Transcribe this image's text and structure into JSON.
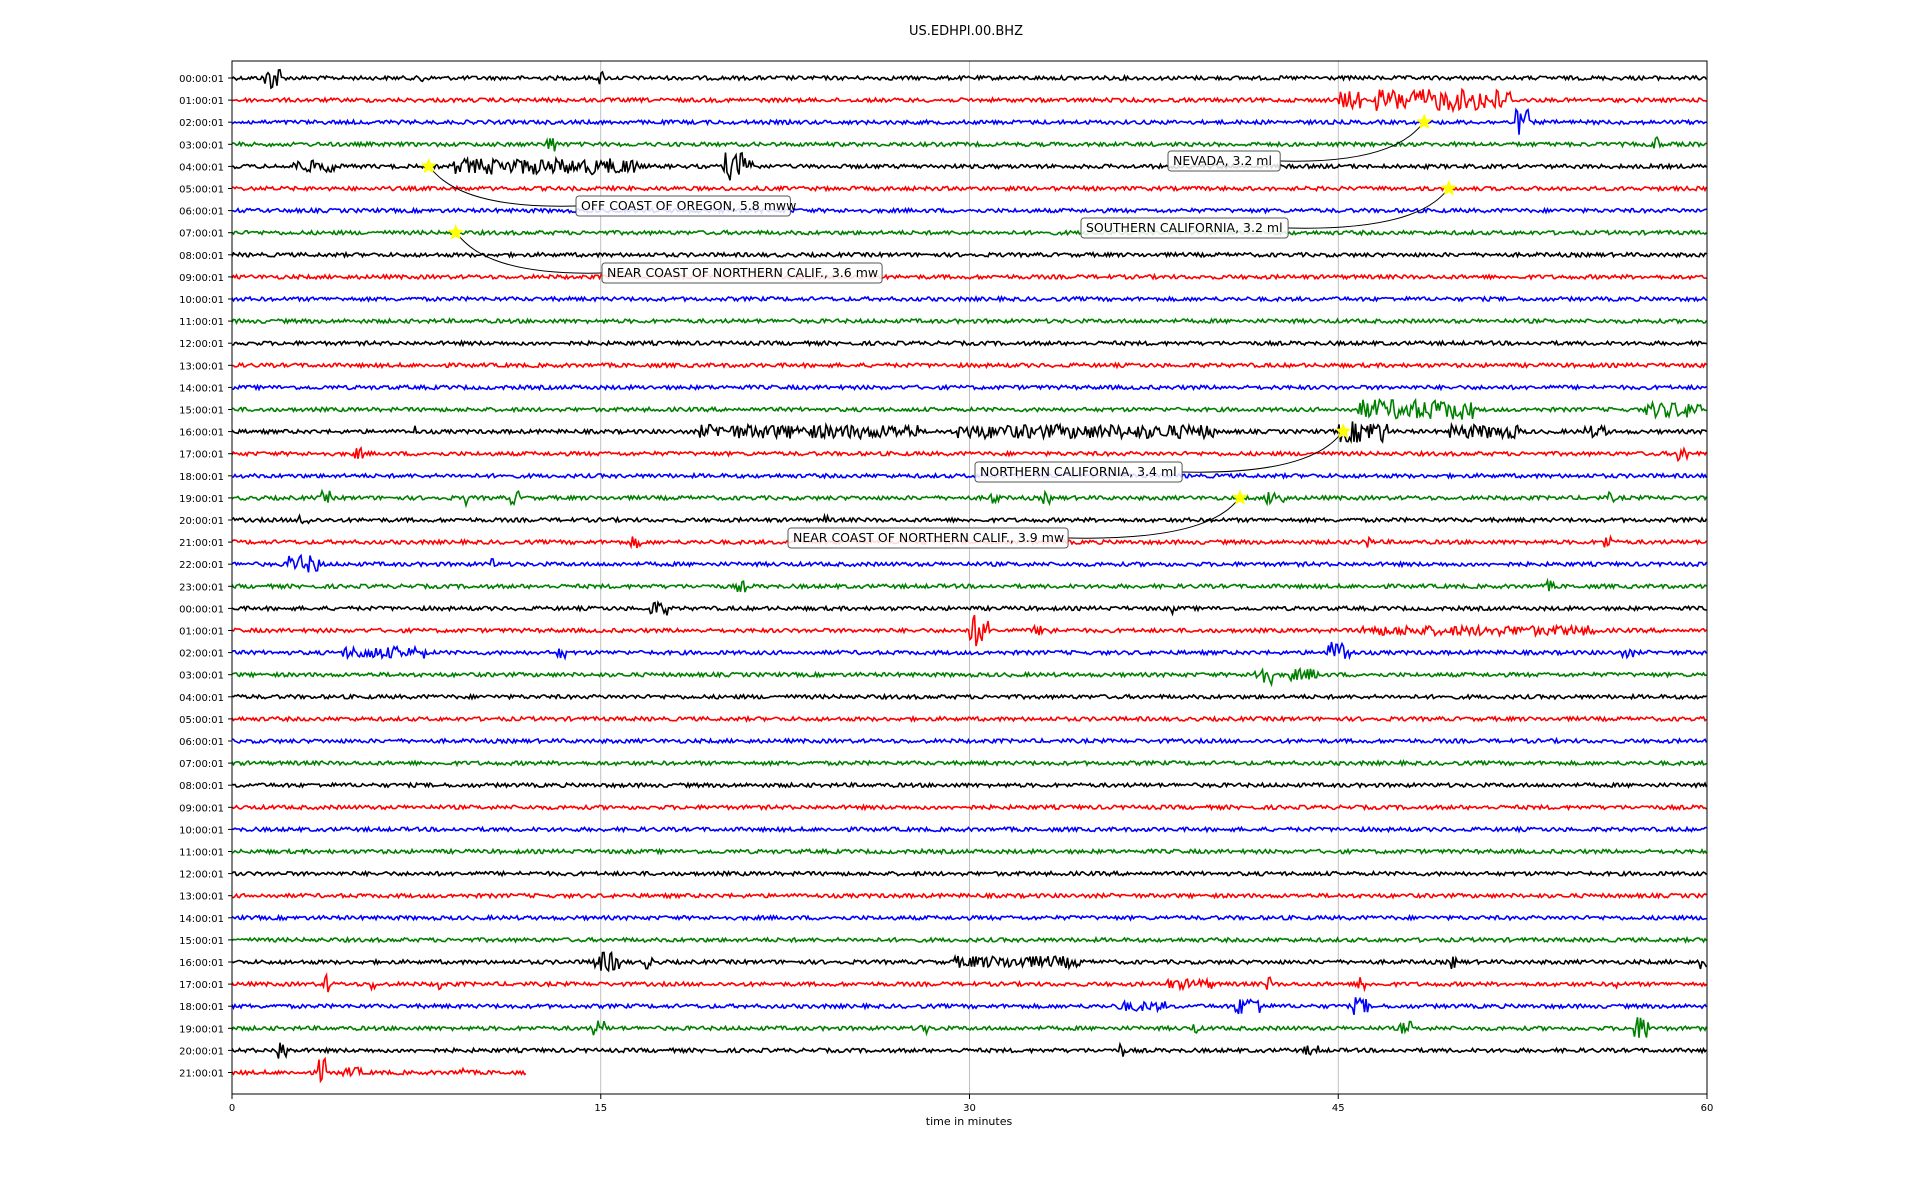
{
  "chart_data": {
    "type": "line",
    "title": "US.EDHPI.00.BHZ",
    "xlabel": "time in minutes",
    "ylabel": "",
    "xlim": [
      0,
      60
    ],
    "xticks": [
      0,
      15,
      30,
      45,
      60
    ],
    "grid_x": true,
    "line_colors": [
      "#000000",
      "#ff0000",
      "#0000ff",
      "#008000"
    ],
    "marker_color": "#ffff00",
    "row_labels": [
      "00:00:01",
      "01:00:01",
      "02:00:01",
      "03:00:01",
      "04:00:01",
      "05:00:01",
      "06:00:01",
      "07:00:01",
      "08:00:01",
      "09:00:01",
      "10:00:01",
      "11:00:01",
      "12:00:01",
      "13:00:01",
      "14:00:01",
      "15:00:01",
      "16:00:01",
      "17:00:01",
      "18:00:01",
      "19:00:01",
      "20:00:01",
      "21:00:01",
      "22:00:01",
      "23:00:01",
      "00:00:01",
      "01:00:01",
      "02:00:01",
      "03:00:01",
      "04:00:01",
      "05:00:01",
      "06:00:01",
      "07:00:01",
      "08:00:01",
      "09:00:01",
      "10:00:01",
      "11:00:01",
      "12:00:01",
      "13:00:01",
      "14:00:01",
      "15:00:01",
      "16:00:01",
      "17:00:01",
      "18:00:01",
      "19:00:01",
      "20:00:01",
      "21:00:01"
    ],
    "last_row_end_minutes": 12,
    "events": [
      {
        "label": "NEVADA, 3.2 ml",
        "row": 2,
        "minute": 48.5
      },
      {
        "label": "OFF COAST OF OREGON, 5.8 mww",
        "row": 4,
        "minute": 8.0
      },
      {
        "label": "SOUTHERN CALIFORNIA, 3.2 ml",
        "row": 5,
        "minute": 49.5
      },
      {
        "label": "NEAR COAST OF NORTHERN CALIF., 3.6 mw",
        "row": 7,
        "minute": 9.1
      },
      {
        "label": "NORTHERN CALIFORNIA, 3.4 ml",
        "row": 16,
        "minute": 45.2
      },
      {
        "label": "NEAR COAST OF NORTHERN CALIF., 3.9 mw",
        "row": 19,
        "minute": 41.0
      }
    ],
    "activity": [
      [
        0,
        [
          1.3,
          2.0
        ],
        1.0
      ],
      [
        0,
        [
          7.6,
          7.8
        ],
        0.7
      ],
      [
        0,
        [
          14.9,
          15.1
        ],
        0.6
      ],
      [
        1,
        [
          45.0,
          46.0
        ],
        0.7
      ],
      [
        1,
        [
          46.5,
          52.0
        ],
        0.9
      ],
      [
        2,
        [
          52.2,
          52.8
        ],
        1.1
      ],
      [
        3,
        [
          12.8,
          13.3
        ],
        0.6
      ],
      [
        3,
        [
          57.8,
          58.1
        ],
        0.8
      ],
      [
        4,
        [
          2.5,
          4.5
        ],
        0.4
      ],
      [
        4,
        [
          9.0,
          16.5
        ],
        0.6
      ],
      [
        4,
        [
          20.0,
          21.2
        ],
        1.2
      ],
      [
        15,
        [
          45.8,
          50.5
        ],
        0.8
      ],
      [
        15,
        [
          57.5,
          59.8
        ],
        0.6
      ],
      [
        16,
        [
          7.3,
          7.5
        ],
        0.5
      ],
      [
        16,
        [
          19.0,
          28.0
        ],
        0.5
      ],
      [
        16,
        [
          29.5,
          40.0
        ],
        0.5
      ],
      [
        16,
        [
          45.0,
          47.0
        ],
        0.9
      ],
      [
        16,
        [
          49.5,
          52.5
        ],
        0.5
      ],
      [
        16,
        [
          55.0,
          56.0
        ],
        0.4
      ],
      [
        17,
        [
          5.0,
          5.4
        ],
        0.4
      ],
      [
        17,
        [
          58.8,
          59.2
        ],
        0.6
      ],
      [
        19,
        [
          3.6,
          4.0
        ],
        0.5
      ],
      [
        19,
        [
          9.5,
          9.7
        ],
        0.6
      ],
      [
        19,
        [
          11.3,
          11.7
        ],
        0.5
      ],
      [
        19,
        [
          30.8,
          31.2
        ],
        0.5
      ],
      [
        19,
        [
          33.0,
          33.3
        ],
        0.4
      ],
      [
        19,
        [
          42.0,
          42.8
        ],
        0.5
      ],
      [
        19,
        [
          56.0,
          56.2
        ],
        0.4
      ],
      [
        20,
        [
          2.7,
          3.2
        ],
        0.4
      ],
      [
        20,
        [
          24.0,
          24.3
        ],
        0.3
      ],
      [
        21,
        [
          16.2,
          16.6
        ],
        0.4
      ],
      [
        21,
        [
          46.0,
          46.4
        ],
        0.4
      ],
      [
        21,
        [
          55.8,
          56.1
        ],
        0.6
      ],
      [
        22,
        [
          2.3,
          3.6
        ],
        0.7
      ],
      [
        22,
        [
          10.5,
          10.7
        ],
        0.6
      ],
      [
        23,
        [
          20.5,
          20.9
        ],
        0.4
      ],
      [
        23,
        [
          53.5,
          53.8
        ],
        0.4
      ],
      [
        24,
        [
          17.0,
          17.7
        ],
        0.5
      ],
      [
        24,
        [
          38.2,
          38.4
        ],
        0.4
      ],
      [
        25,
        [
          30.0,
          30.8
        ],
        1.4
      ],
      [
        25,
        [
          32.5,
          33.5
        ],
        0.3
      ],
      [
        25,
        [
          46.0,
          55.5
        ],
        0.3
      ],
      [
        26,
        [
          4.5,
          7.5
        ],
        0.4
      ],
      [
        26,
        [
          7.8,
          7.9
        ],
        1.1
      ],
      [
        26,
        [
          13.2,
          13.6
        ],
        0.4
      ],
      [
        26,
        [
          44.5,
          45.5
        ],
        0.9
      ],
      [
        26,
        [
          56.5,
          57.0
        ],
        0.3
      ],
      [
        27,
        [
          41.5,
          42.3
        ],
        0.8
      ],
      [
        27,
        [
          43.0,
          44.2
        ],
        0.4
      ],
      [
        40,
        [
          14.7,
          15.8
        ],
        0.8
      ],
      [
        40,
        [
          16.8,
          17.1
        ],
        0.5
      ],
      [
        40,
        [
          29.3,
          34.5
        ],
        0.4
      ],
      [
        40,
        [
          49.6,
          49.8
        ],
        0.5
      ],
      [
        40,
        [
          59.7,
          60.0
        ],
        0.5
      ],
      [
        41,
        [
          3.7,
          4.0
        ],
        0.8
      ],
      [
        41,
        [
          5.6,
          5.8
        ],
        0.4
      ],
      [
        41,
        [
          8.4,
          8.6
        ],
        0.5
      ],
      [
        41,
        [
          38.0,
          40.0
        ],
        0.3
      ],
      [
        41,
        [
          42.1,
          42.3
        ],
        0.6
      ],
      [
        41,
        [
          45.8,
          46.1
        ],
        0.7
      ],
      [
        41,
        [
          56.2,
          56.4
        ],
        0.6
      ],
      [
        42,
        [
          36.0,
          38.0
        ],
        0.3
      ],
      [
        42,
        [
          40.8,
          42.0
        ],
        0.7
      ],
      [
        42,
        [
          45.6,
          46.2
        ],
        0.7
      ],
      [
        43,
        [
          14.7,
          15.2
        ],
        0.6
      ],
      [
        43,
        [
          28.0,
          28.3
        ],
        0.4
      ],
      [
        43,
        [
          39.0,
          39.3
        ],
        0.4
      ],
      [
        43,
        [
          47.5,
          48.0
        ],
        0.5
      ],
      [
        43,
        [
          57.0,
          57.7
        ],
        1.0
      ],
      [
        44,
        [
          1.8,
          2.3
        ],
        0.9
      ],
      [
        44,
        [
          36.1,
          36.3
        ],
        0.6
      ],
      [
        44,
        [
          43.6,
          44.2
        ],
        0.3
      ],
      [
        45,
        [
          3.5,
          3.8
        ],
        1.2
      ],
      [
        45,
        [
          4.5,
          5.3
        ],
        0.3
      ],
      [
        45,
        [
          9.2,
          9.5
        ],
        0.4
      ]
    ]
  }
}
